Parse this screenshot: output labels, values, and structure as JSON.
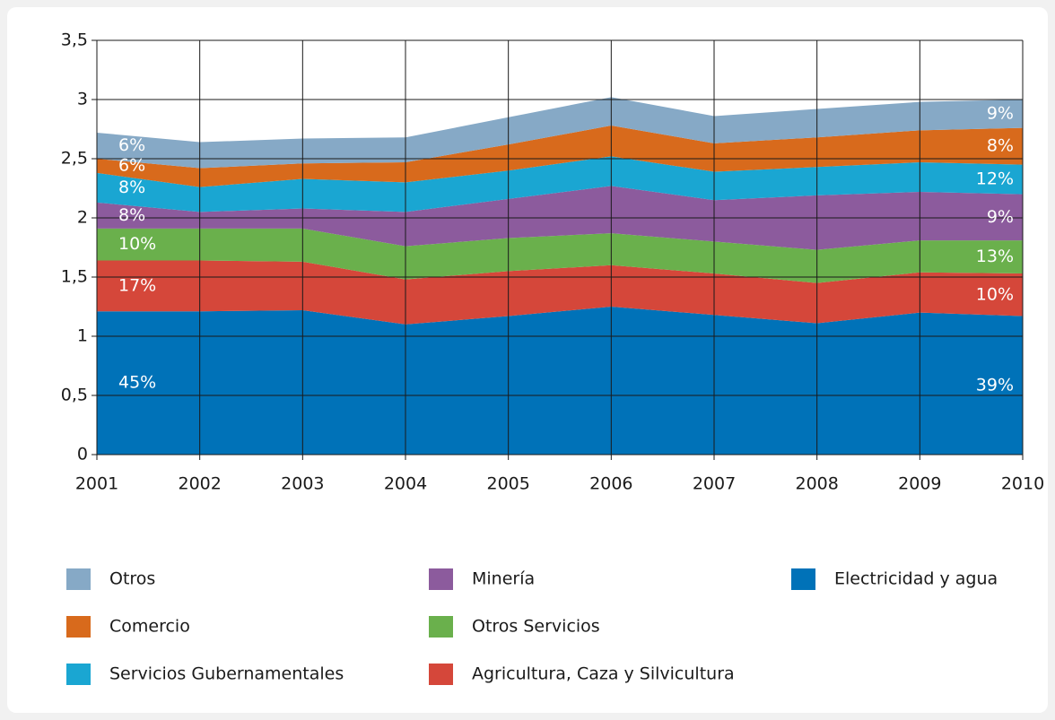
{
  "chart_data": {
    "type": "stacked_area",
    "categories": [
      "2001",
      "2002",
      "2003",
      "2004",
      "2005",
      "2006",
      "2007",
      "2008",
      "2009",
      "2010"
    ],
    "ylim": [
      0,
      3.5
    ],
    "yticks": [
      0,
      {
        "value": 0.5,
        "label": "0,5"
      },
      1,
      {
        "value": 1.5,
        "label": "1,5"
      },
      2,
      {
        "value": 2.5,
        "label": "2,5"
      },
      3,
      {
        "value": 3.5,
        "label": "3,5"
      }
    ],
    "grid": true,
    "series": [
      {
        "name": "Otros",
        "color": "#86a9c6",
        "values": [
          0.22,
          0.22,
          0.21,
          0.21,
          0.23,
          0.24,
          0.23,
          0.24,
          0.24,
          0.24
        ],
        "end_labels": [
          "6%",
          "9%"
        ]
      },
      {
        "name": "Comercio",
        "color": "#d86a1c",
        "values": [
          0.12,
          0.16,
          0.13,
          0.17,
          0.22,
          0.26,
          0.24,
          0.25,
          0.27,
          0.31
        ],
        "end_labels": [
          "6%",
          "8%"
        ]
      },
      {
        "name": "Servicios Gubernamentales",
        "color": "#1aa6d2",
        "values": [
          0.25,
          0.21,
          0.25,
          0.25,
          0.24,
          0.25,
          0.24,
          0.24,
          0.25,
          0.25
        ],
        "end_labels": [
          "8%",
          "12%"
        ]
      },
      {
        "name": "Minería",
        "color": "#8c5b9d",
        "values": [
          0.22,
          0.14,
          0.17,
          0.29,
          0.33,
          0.4,
          0.35,
          0.46,
          0.41,
          0.39
        ],
        "end_labels": [
          "8%",
          "9%"
        ]
      },
      {
        "name": "Otros Servicios",
        "color": "#6ab04c",
        "values": [
          0.27,
          0.27,
          0.28,
          0.28,
          0.28,
          0.27,
          0.27,
          0.28,
          0.27,
          0.28
        ],
        "end_labels": [
          "10%",
          "13%"
        ]
      },
      {
        "name": "Agricultura, Caza y Silvicultura",
        "color": "#d5473a",
        "values": [
          0.43,
          0.43,
          0.41,
          0.38,
          0.38,
          0.35,
          0.35,
          0.34,
          0.34,
          0.36
        ],
        "end_labels": [
          "17%",
          "10%"
        ]
      },
      {
        "name": "Electricidad y agua",
        "color": "#0072b8",
        "values": [
          1.21,
          1.21,
          1.22,
          1.1,
          1.17,
          1.25,
          1.18,
          1.11,
          1.2,
          1.17
        ],
        "end_labels": [
          "45%",
          "39%"
        ]
      }
    ]
  }
}
